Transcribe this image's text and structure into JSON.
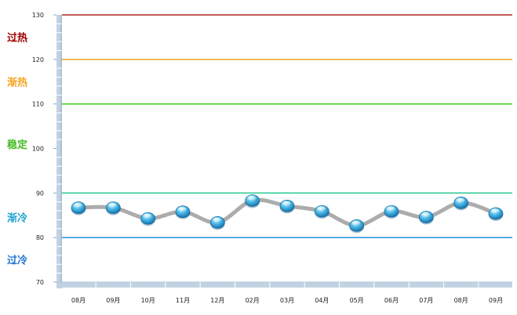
{
  "chart_data": {
    "type": "line",
    "title": "",
    "xlabel": "",
    "ylabel": "",
    "ylim": [
      70,
      130
    ],
    "yticks": [
      "70",
      "80",
      "90",
      "100",
      "110",
      "120",
      "130"
    ],
    "categories": [
      "08月",
      "09月",
      "10月",
      "11月",
      "12月",
      "02月",
      "03月",
      "04月",
      "05月",
      "06月",
      "07月",
      "08月",
      "09月"
    ],
    "series": [
      {
        "values": [
          86.7,
          86.7,
          84.3,
          85.8,
          83.4,
          88.3,
          87.1,
          85.9,
          82.7,
          85.9,
          84.6,
          87.8,
          85.4
        ]
      }
    ],
    "thresholds": [
      {
        "value": 130,
        "color": "#b22222"
      },
      {
        "value": 120,
        "color": "#f0a830"
      },
      {
        "value": 110,
        "color": "#44cc22"
      },
      {
        "value": 90,
        "color": "#33cc99"
      },
      {
        "value": 80,
        "color": "#3399dd"
      }
    ],
    "zones": [
      {
        "label": "过热",
        "color": "#a00000",
        "at": 125
      },
      {
        "label": "渐热",
        "color": "#f5a623",
        "at": 115
      },
      {
        "label": "稳定",
        "color": "#44bb22",
        "at": 101
      },
      {
        "label": "渐冷",
        "color": "#1fa3cc",
        "at": 84.5
      },
      {
        "label": "过冷",
        "color": "#1f77cc",
        "at": 75
      }
    ],
    "grid": false,
    "legend": "none"
  }
}
